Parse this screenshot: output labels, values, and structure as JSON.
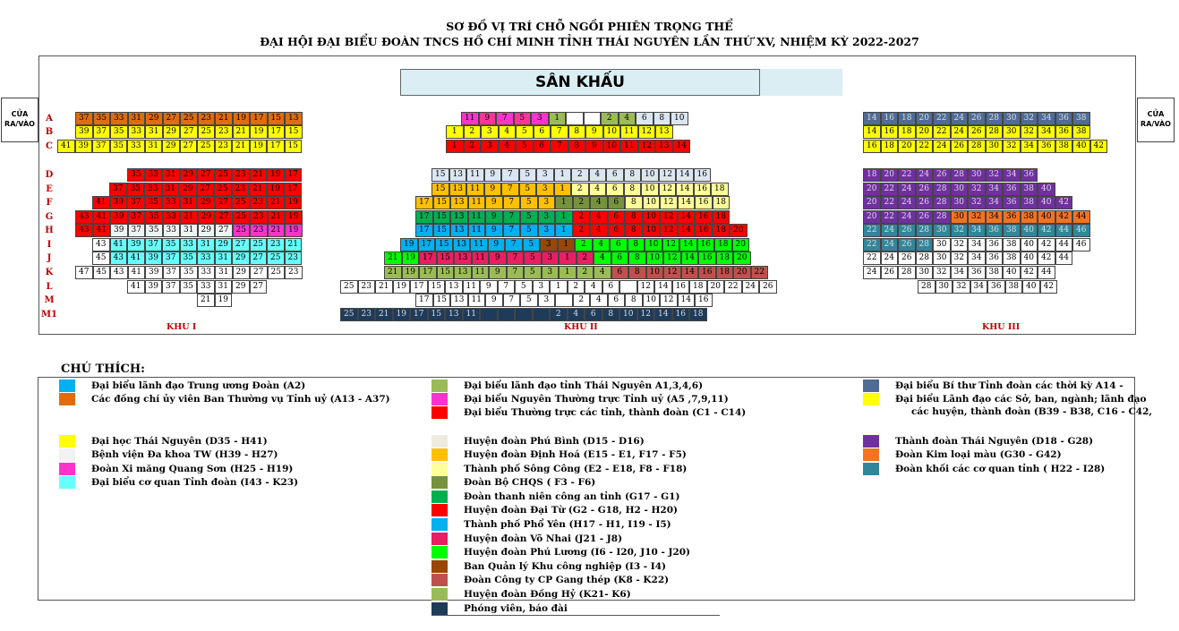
{
  "header": {
    "title_line1": "SƠ ĐỒ VỊ TRÍ CHỖ NGỒI PHIÊN TRỌNG THỂ",
    "title_line2": "ĐẠI HỘI ĐẠI BIỂU ĐOÀN TNCS HỒ CHÍ MINH TỈNH THÁI NGUYÊN LẦN THỨ XV, NHIỆM KỲ 2022-2027"
  },
  "stage_label": "SÂN KHẤU",
  "doors": {
    "left": "CỬA\nRA/VÀO",
    "right": "CỬA\nRA/VÀO"
  },
  "row_labels": [
    "A",
    "B",
    "C",
    "D",
    "E",
    "F",
    "G",
    "H",
    "I",
    "J",
    "K",
    "L",
    "M",
    "M1"
  ],
  "zones": [
    "KHU I",
    "KHU II",
    "KHU III"
  ],
  "colors": {
    "blue": "#00b0f0",
    "orange": "#e26b0a",
    "yellow": "#ffff00",
    "white": "#ffffff",
    "white2": "#f2f2f2",
    "magenta": "#ff33cc",
    "cyan": "#66ffff",
    "olive": "#9bbb59",
    "pink": "#ff3399",
    "red": "#ff0000",
    "beige": "#eeece1",
    "gold": "#ffc000",
    "lightyellow": "#ffff99",
    "army": "#76923c",
    "green": "#00b050",
    "vred": "#ff0000",
    "fyblue": "#00b0f0",
    "vnhai": "#e91e63",
    "lime": "#00ff00",
    "brown": "#974706",
    "rosybrown": "#c0504d",
    "dongHy": "#9bbb59",
    "navy": "#1f3b5a",
    "steel": "#4f6b96",
    "purple": "#7030a0",
    "korange": "#f37321",
    "teal": "#31869b",
    "paleblue": "#dce6f1"
  },
  "seats": {
    "k1": {
      "A": [
        "37",
        "35",
        "33",
        "31",
        "29",
        "27",
        "25",
        "23",
        "21",
        "19",
        "17",
        "15",
        "13"
      ],
      "B": [
        "39",
        "37",
        "35",
        "33",
        "31",
        "29",
        "27",
        "25",
        "23",
        "21",
        "19",
        "17",
        "15"
      ],
      "C": [
        "41",
        "39",
        "37",
        "35",
        "33",
        "31",
        "29",
        "27",
        "25",
        "23",
        "21",
        "19",
        "17",
        "15"
      ],
      "D": [
        "35",
        "33",
        "31",
        "29",
        "27",
        "25",
        "23",
        "21",
        "19",
        "17"
      ],
      "E": [
        "37",
        "35",
        "33",
        "31",
        "29",
        "27",
        "25",
        "23",
        "21",
        "19",
        "17"
      ],
      "F": [
        "41",
        "39",
        "37",
        "35",
        "33",
        "31",
        "29",
        "27",
        "25",
        "23",
        "21",
        "19"
      ],
      "G": [
        "43",
        "41",
        "39",
        "37",
        "35",
        "33",
        "31",
        "29",
        "27",
        "25",
        "23",
        "21",
        "19"
      ],
      "H": [
        "43",
        "41",
        "39",
        "37",
        "35",
        "33",
        "31",
        "29",
        "27",
        "25",
        "23",
        "21",
        "19"
      ],
      "I": [
        "43",
        "41",
        "39",
        "37",
        "35",
        "33",
        "31",
        "29",
        "27",
        "25",
        "23",
        "21"
      ],
      "J": [
        "45",
        "43",
        "41",
        "39",
        "37",
        "35",
        "33",
        "31",
        "29",
        "27",
        "25",
        "23"
      ],
      "K": [
        "47",
        "45",
        "43",
        "41",
        "39",
        "37",
        "35",
        "33",
        "31",
        "29",
        "27",
        "25",
        "23"
      ],
      "L": [
        "41",
        "39",
        "37",
        "35",
        "33",
        "31",
        "29",
        "27"
      ],
      "M": [
        "21",
        "19"
      ]
    },
    "k2": {
      "A": [
        "11",
        "9",
        "7",
        "5",
        "3",
        "1",
        "",
        "",
        "2",
        "4",
        "6",
        "8",
        "10"
      ],
      "B": [
        "1",
        "2",
        "3",
        "4",
        "5",
        "6",
        "7",
        "8",
        "9",
        "10",
        "11",
        "12",
        "13"
      ],
      "C": [
        "1",
        "2",
        "3",
        "4",
        "5",
        "6",
        "7",
        "8",
        "9",
        "10",
        "11",
        "12",
        "13",
        "14"
      ],
      "D": [
        "15",
        "13",
        "11",
        "9",
        "7",
        "5",
        "3",
        "1",
        "2",
        "4",
        "6",
        "8",
        "10",
        "12",
        "14",
        "16"
      ],
      "E": [
        "15",
        "13",
        "11",
        "9",
        "7",
        "5",
        "3",
        "1",
        "2",
        "4",
        "6",
        "8",
        "10",
        "12",
        "14",
        "16",
        "18"
      ],
      "F": [
        "17",
        "15",
        "13",
        "11",
        "9",
        "7",
        "5",
        "3",
        "1",
        "2",
        "4",
        "6",
        "8",
        "10",
        "12",
        "14",
        "16",
        "18"
      ],
      "G": [
        "17",
        "15",
        "13",
        "11",
        "9",
        "7",
        "5",
        "3",
        "1",
        "2",
        "4",
        "6",
        "8",
        "10",
        "12",
        "14",
        "16",
        "18"
      ],
      "H": [
        "17",
        "15",
        "13",
        "11",
        "9",
        "7",
        "5",
        "3",
        "1",
        "2",
        "4",
        "6",
        "8",
        "10",
        "12",
        "14",
        "16",
        "18",
        "20"
      ],
      "I": [
        "19",
        "17",
        "15",
        "13",
        "11",
        "9",
        "7",
        "5",
        "3",
        "1",
        "2",
        "4",
        "6",
        "8",
        "10",
        "12",
        "14",
        "16",
        "18",
        "20"
      ],
      "J": [
        "21",
        "19",
        "17",
        "15",
        "13",
        "11",
        "9",
        "7",
        "5",
        "3",
        "1",
        "2",
        "4",
        "6",
        "8",
        "10",
        "12",
        "14",
        "16",
        "18",
        "20"
      ],
      "K": [
        "21",
        "19",
        "17",
        "15",
        "13",
        "11",
        "9",
        "7",
        "5",
        "3",
        "1",
        "2",
        "4",
        "6",
        "8",
        "10",
        "12",
        "14",
        "16",
        "18",
        "20",
        "22"
      ],
      "L": [
        "25",
        "23",
        "21",
        "19",
        "17",
        "15",
        "13",
        "11",
        "9",
        "7",
        "5",
        "3",
        "1",
        "2",
        "4",
        "6",
        "",
        "12",
        "14",
        "16",
        "18",
        "20",
        "22",
        "24",
        "26"
      ],
      "M": [
        "17",
        "15",
        "13",
        "11",
        "9",
        "7",
        "5",
        "3",
        "",
        "2",
        "4",
        "6",
        "8",
        "10",
        "12",
        "14",
        "16"
      ],
      "M1": [
        "25",
        "23",
        "21",
        "19",
        "17",
        "15",
        "13",
        "11",
        "",
        "",
        "",
        "",
        "2",
        "4",
        "6",
        "8",
        "10",
        "12",
        "14",
        "16",
        "18"
      ]
    },
    "k3": {
      "A": [
        "14",
        "16",
        "18",
        "20",
        "22",
        "24",
        "26",
        "28",
        "30",
        "32",
        "34",
        "36",
        "38"
      ],
      "B": [
        "14",
        "16",
        "18",
        "20",
        "22",
        "24",
        "26",
        "28",
        "30",
        "32",
        "34",
        "36",
        "38"
      ],
      "C": [
        "16",
        "18",
        "20",
        "22",
        "24",
        "26",
        "28",
        "30",
        "32",
        "34",
        "36",
        "38",
        "40",
        "42"
      ],
      "D": [
        "18",
        "20",
        "22",
        "24",
        "26",
        "28",
        "30",
        "32",
        "34",
        "36"
      ],
      "E": [
        "20",
        "22",
        "24",
        "26",
        "28",
        "30",
        "32",
        "34",
        "36",
        "38",
        "40"
      ],
      "F": [
        "20",
        "22",
        "24",
        "26",
        "28",
        "30",
        "32",
        "34",
        "36",
        "38",
        "40",
        "42"
      ],
      "G": [
        "20",
        "22",
        "24",
        "26",
        "28",
        "30",
        "32",
        "34",
        "36",
        "38",
        "40",
        "42",
        "44"
      ],
      "H": [
        "22",
        "24",
        "26",
        "28",
        "30",
        "32",
        "34",
        "36",
        "38",
        "40",
        "42",
        "44",
        "46"
      ],
      "I": [
        "22",
        "24",
        "26",
        "28",
        "30",
        "32",
        "34",
        "36",
        "38",
        "40",
        "42",
        "44",
        "46"
      ],
      "J": [
        "22",
        "24",
        "26",
        "28",
        "30",
        "32",
        "34",
        "36",
        "38",
        "40",
        "42",
        "44"
      ],
      "K": [
        "24",
        "26",
        "28",
        "30",
        "32",
        "34",
        "36",
        "38",
        "40",
        "42",
        "44"
      ],
      "L": [
        "28",
        "30",
        "32",
        "34",
        "36",
        "38",
        "40",
        "42"
      ]
    }
  },
  "legend": {
    "title": "CHÚ THÍCH:",
    "items": [
      {
        "label": "Đại biểu lãnh đạo Trung ương Đoàn (A2)",
        "color": "#00b0f0"
      },
      {
        "label": "Các đồng chí ủy viên Ban Thường vụ Tỉnh uỷ (A13 - A37)",
        "color": "#e26b0a"
      },
      {
        "label": "Đại học Thái Nguyên (D35 - H41)",
        "color": "#ffff00"
      },
      {
        "label": "Bệnh viện Đa khoa TW (H39 - H27)",
        "color": "#f2f2f2"
      },
      {
        "label": "Đoàn Xi măng Quang Sơn (H25 - H19)",
        "color": "#ff33cc"
      },
      {
        "label": "Đại biểu cơ quan Tỉnh đoàn (I43 - K23)",
        "color": "#66ffff"
      },
      {
        "label": "Đại biểu lãnh đạo tỉnh Thái Nguyên A1,3,4,6)",
        "color": "#9bbb59"
      },
      {
        "label": "Đại biểu Nguyên Thường trực Tỉnh uỷ (A5 ,7,9,11)",
        "color": "#ff33cc"
      },
      {
        "label": "Đại biểu Thường trực các tỉnh, thành đoàn (C1 - C14)",
        "color": "#ff0000"
      },
      {
        "label": "Huyện đoàn Phú Bình (D15 - D16)",
        "color": "#eeece1"
      },
      {
        "label": "Huyện đoàn Định Hoá (E15 - E1, F17 - F5)",
        "color": "#ffc000"
      },
      {
        "label": "Thành phố Sông Công (E2 - E18, F8 - F18)",
        "color": "#ffff99"
      },
      {
        "label": "Đoàn Bộ CHQS ( F3 - F6)",
        "color": "#76923c"
      },
      {
        "label": "Đoàn thanh niên công an tỉnh (G17 - G1)",
        "color": "#00b050"
      },
      {
        "label": "Huyện đoàn Đại Từ (G2 - G18, H2 - H20)",
        "color": "#ff0000"
      },
      {
        "label": "Thành phố Phổ Yên (H17 - H1, I19 - I5)",
        "color": "#00b0f0"
      },
      {
        "label": "Huyện đoàn Võ Nhai (J21 - J8)",
        "color": "#e91e63"
      },
      {
        "label": "Huyện đoàn Phú Lương (I6 - I20, J10 - J20)",
        "color": "#00ff00"
      },
      {
        "label": "Ban Quản lý Khu công nghiệp (I3 - I4)",
        "color": "#974706"
      },
      {
        "label": "Đoàn Công ty CP Gang thép (K8 - K22)",
        "color": "#c0504d"
      },
      {
        "label": "Huyện đoàn Đồng Hỷ (K21- K6)",
        "color": "#9bbb59"
      },
      {
        "label": "Phóng viên, báo đài",
        "color": "#1f3b5a"
      },
      {
        "label": "Đại biểu Bí thư Tỉnh đoàn các thời kỳ A14 -",
        "color": "#4f6b96"
      },
      {
        "label": "Đại biểu Lãnh đạo các Sở, ban, ngành; lãnh đạo",
        "color": "#ffff00"
      },
      {
        "label": "Thành đoàn Thái Nguyên (D18 - G28)",
        "color": "#7030a0"
      },
      {
        "label": "Đoàn Kim loại màu (G30 - G42)",
        "color": "#f37321"
      },
      {
        "label": "Đoàn khối các cơ quan tỉnh ( H22 - I28)",
        "color": "#31869b"
      }
    ],
    "extra_line": "các huyện, thành đoàn (B39 - B38, C16 - C42,"
  }
}
